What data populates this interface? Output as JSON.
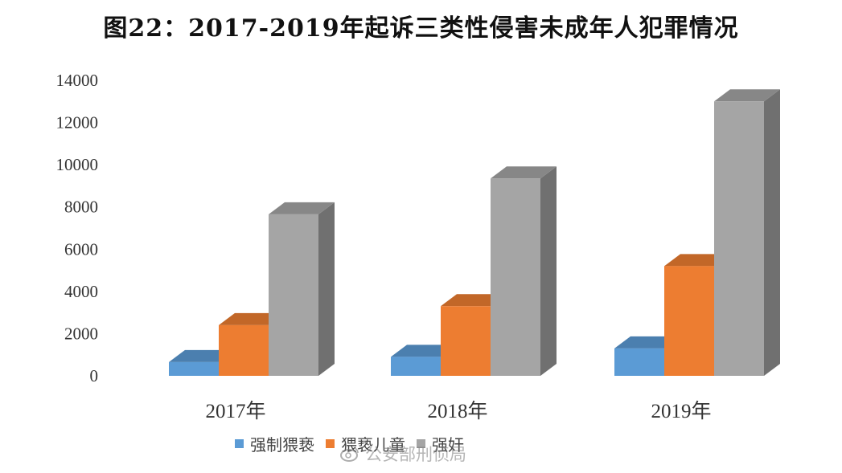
{
  "chart_data": {
    "type": "bar",
    "title": "图22：2017-2019年起诉三类性侵害未成年人犯罪情况",
    "categories": [
      "2017年",
      "2018年",
      "2019年"
    ],
    "series": [
      {
        "name": "强制猥亵",
        "values": [
          650,
          900,
          1300
        ],
        "color": "#5B9BD5"
      },
      {
        "name": "猥亵儿童",
        "values": [
          2400,
          3300,
          5200
        ],
        "color": "#ED7D31"
      },
      {
        "name": "强奸",
        "values": [
          7650,
          9350,
          13000
        ],
        "color": "#A5A5A5"
      }
    ],
    "ylim": [
      0,
      14000
    ],
    "yticks": [
      "0",
      "2000",
      "4000",
      "6000",
      "8000",
      "10000",
      "12000",
      "14000"
    ],
    "style": "3d-column",
    "legend_position": "bottom",
    "grid": false
  },
  "watermark": {
    "text": "公安部刑侦局",
    "icon": "weibo-icon"
  }
}
